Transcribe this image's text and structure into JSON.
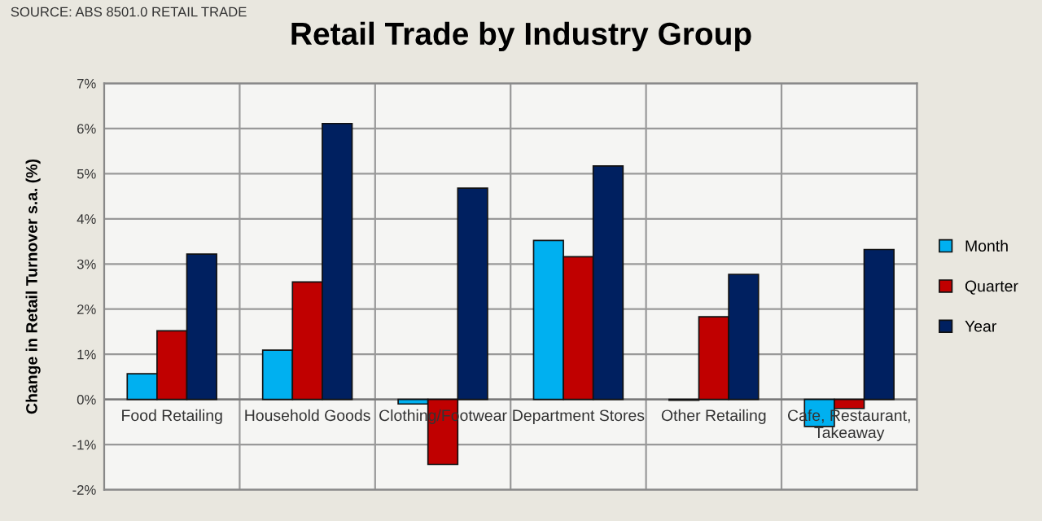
{
  "chart_data": {
    "type": "bar",
    "title": "Retail Trade by Industry Group",
    "ylabel": "Change in Retail Turnover s.a. (%)",
    "annotations": [
      "SOURCE: ABS 8501.0 RETAIL TRADE"
    ],
    "categories": [
      "Food Retailing",
      "Household Goods",
      "Clothing/Footwear",
      "Department Stores",
      "Other Retailing",
      "Cafe, Restaurant,\nTakeaway"
    ],
    "series": [
      {
        "name": "Month",
        "color": "#00b0f0",
        "values": [
          0.57,
          1.09,
          -0.1,
          3.52,
          -0.02,
          -0.6
        ]
      },
      {
        "name": "Quarter",
        "color": "#c00000",
        "values": [
          1.52,
          2.6,
          -1.44,
          3.16,
          1.83,
          -0.2
        ]
      },
      {
        "name": "Year",
        "color": "#002060",
        "values": [
          3.22,
          6.11,
          4.68,
          5.17,
          2.77,
          3.32
        ]
      }
    ],
    "ylim": [
      -2,
      7
    ],
    "yticks": [
      {
        "value": -2,
        "label": "-2%"
      },
      {
        "value": -1,
        "label": "-1%"
      },
      {
        "value": 0,
        "label": "0%"
      },
      {
        "value": 1,
        "label": "1%"
      },
      {
        "value": 2,
        "label": "2%"
      },
      {
        "value": 3,
        "label": "3%"
      },
      {
        "value": 4,
        "label": "4%"
      },
      {
        "value": 5,
        "label": "5%"
      },
      {
        "value": 6,
        "label": "6%"
      },
      {
        "value": 7,
        "label": "7%"
      }
    ],
    "grid": true,
    "legend": "right"
  }
}
